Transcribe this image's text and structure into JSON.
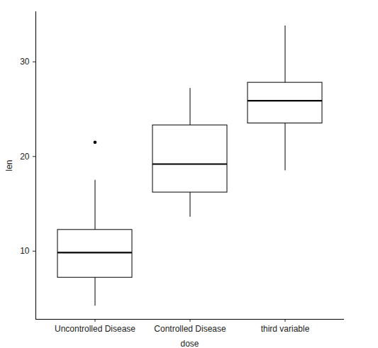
{
  "chart_data": {
    "type": "box",
    "x_label": "dose",
    "y_label": "len",
    "categories": [
      "Uncontrolled Disease",
      "Controlled Disease",
      "third variable"
    ],
    "boxes": [
      {
        "whisker_low": 4.2,
        "q1": 7.2,
        "median": 9.85,
        "q3": 12.25,
        "whisker_high": 17.5,
        "outliers": [
          21.5
        ]
      },
      {
        "whisker_low": 13.6,
        "q1": 16.2,
        "median": 19.2,
        "q3": 23.3,
        "whisker_high": 27.2,
        "outliers": []
      },
      {
        "whisker_low": 18.5,
        "q1": 23.5,
        "median": 25.9,
        "q3": 27.8,
        "whisker_high": 33.8,
        "outliers": []
      }
    ],
    "color": "#000000",
    "ylim": [
      2.8,
      35.3
    ],
    "yticks": [
      10,
      20,
      30
    ],
    "grid": false
  }
}
